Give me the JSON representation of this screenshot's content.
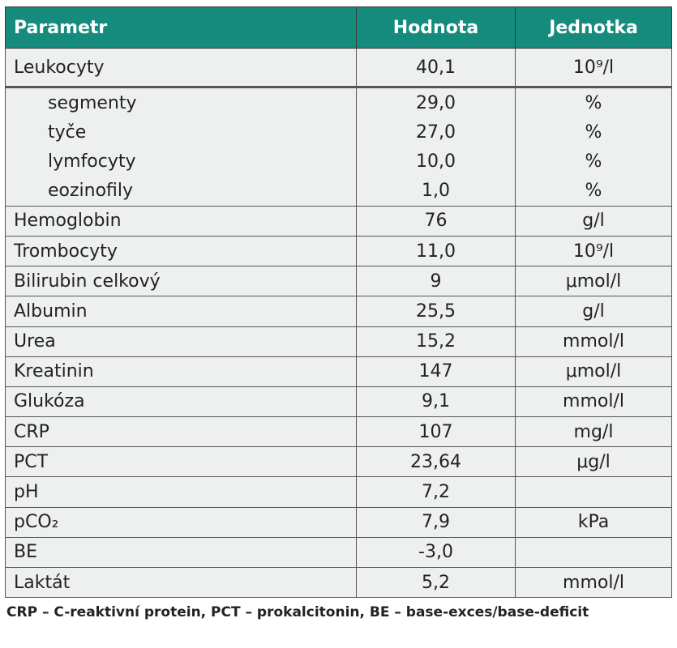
{
  "table": {
    "header": [
      "Parametr",
      "Hodnota",
      "Jednotka"
    ],
    "rows": [
      [
        "Leukocyty",
        "40,1",
        "10⁹/l"
      ],
      [
        "segmenty",
        "29,0",
        "%"
      ],
      [
        "tyče",
        "27,0",
        "%"
      ],
      [
        "lymfocyty",
        "10,0",
        "%"
      ],
      [
        "eozinofily",
        "1,0",
        "%"
      ],
      [
        "Hemoglobin",
        "76",
        "g/l"
      ],
      [
        "Trombocyty",
        "11,0",
        "10⁹/l"
      ],
      [
        "Bilirubin celkový",
        "9",
        "μmol/l"
      ],
      [
        "Albumin",
        "25,5",
        "g/l"
      ],
      [
        "Urea",
        "15,2",
        "mmol/l"
      ],
      [
        "Kreatinin",
        "147",
        "μmol/l"
      ],
      [
        "Glukóza",
        "9,1",
        "mmol/l"
      ],
      [
        "CRP",
        "107",
        "mg/l"
      ],
      [
        "PCT",
        "23,64",
        "μg/l"
      ],
      [
        "pH",
        "7,2",
        null
      ],
      [
        "pCO₂",
        "7,9",
        "kPa"
      ],
      [
        "BE",
        "-3,0",
        null
      ],
      [
        "Laktát",
        "5,2",
        "mmol/l"
      ]
    ]
  },
  "footnote": "CRP – C-reaktivní protein, PCT – prokalcitonin, BE – base-exces/base-deficit"
}
